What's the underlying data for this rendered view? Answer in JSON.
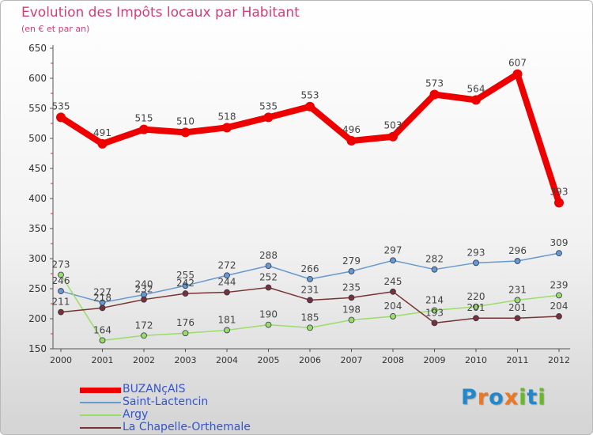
{
  "chart_data": {
    "type": "line",
    "title": "Evolution des Impôts locaux par Habitant",
    "subtitle": "(en € et par an)",
    "x": [
      "2000",
      "2001",
      "2002",
      "2003",
      "2004",
      "2005",
      "2006",
      "2007",
      "2008",
      "2009",
      "2010",
      "2011",
      "2012"
    ],
    "ylim": [
      150,
      650
    ],
    "yticks": [
      150,
      200,
      250,
      300,
      350,
      400,
      450,
      500,
      550,
      600,
      650
    ],
    "grid": false,
    "legend_position": "bottom-left",
    "series": [
      {
        "name": "BUZANçAIS",
        "color": "#ee0000",
        "values": [
          535,
          491,
          515,
          510,
          518,
          535,
          553,
          496,
          503,
          573,
          564,
          607,
          393
        ]
      },
      {
        "name": "Saint-Lactencin",
        "color": "#6699cc",
        "values": [
          246,
          227,
          240,
          255,
          272,
          288,
          266,
          279,
          297,
          282,
          293,
          296,
          309
        ]
      },
      {
        "name": "Argy",
        "color": "#99dd66",
        "values": [
          273,
          164,
          172,
          176,
          181,
          190,
          185,
          198,
          204,
          214,
          220,
          231,
          239
        ]
      },
      {
        "name": "La Chapelle-Orthemale",
        "color": "#773333",
        "values": [
          211,
          218,
          232,
          242,
          244,
          252,
          231,
          235,
          245,
          193,
          201,
          201,
          204
        ]
      }
    ]
  },
  "logo": {
    "letters": [
      "P",
      "r",
      "o",
      "x",
      "i",
      "t",
      "i"
    ],
    "colors": [
      "#2288cc",
      "#ee7722",
      "#2288cc",
      "#ee7722",
      "#66bb22",
      "#2288cc",
      "#66bb22"
    ]
  }
}
